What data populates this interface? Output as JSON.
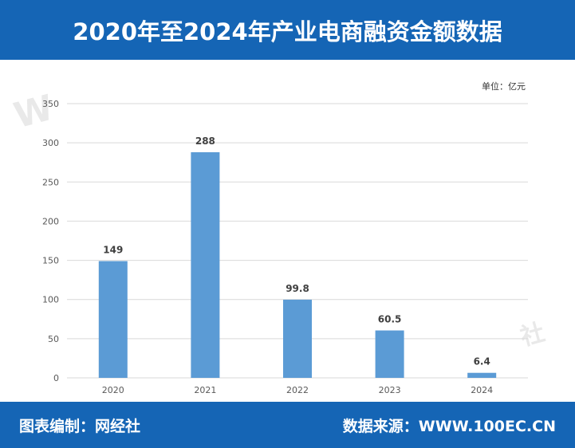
{
  "header": {
    "title": "2020年至2024年产业电商融资金额数据"
  },
  "unit": "单位：亿元",
  "footer": {
    "compiler": "图表编制：网经社",
    "source": "数据来源：WWW.100EC.CN"
  },
  "colors": {
    "brand": "#1565b5",
    "bar": "#5b9bd5",
    "grid": "#d9d9d9"
  },
  "chart_data": {
    "type": "bar",
    "title": "2020年至2024年产业电商融资金额数据",
    "categories": [
      "2020",
      "2021",
      "2022",
      "2023",
      "2024"
    ],
    "values": [
      149,
      288,
      99.8,
      60.5,
      6.4
    ],
    "value_labels": [
      "149",
      "288",
      "99.8",
      "60.5",
      "6.4"
    ],
    "ylim": [
      0,
      350
    ],
    "yticks": [
      0,
      50,
      100,
      150,
      200,
      250,
      300,
      350
    ],
    "ylabel": "单位：亿元",
    "xlabel": "",
    "grid": true
  }
}
